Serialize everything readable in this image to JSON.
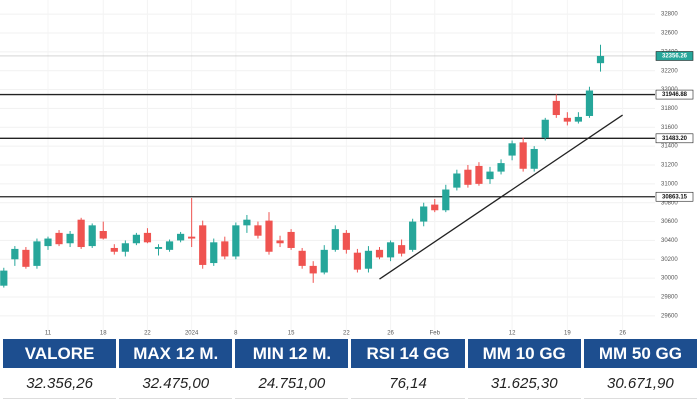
{
  "chart_data": {
    "type": "candlestick",
    "categories": [
      null,
      null,
      null,
      null,
      "11",
      null,
      null,
      null,
      null,
      "18",
      null,
      null,
      null,
      "22",
      null,
      null,
      null,
      "2024",
      null,
      null,
      null,
      "8",
      null,
      null,
      null,
      null,
      "15",
      null,
      null,
      null,
      null,
      "22",
      null,
      null,
      null,
      "26",
      null,
      null,
      null,
      "Feb",
      null,
      null,
      null,
      null,
      null,
      null,
      "12",
      null,
      null,
      null,
      null,
      "19",
      null,
      null,
      null,
      null,
      "26"
    ],
    "open": [
      29920,
      30200,
      30300,
      30130,
      30340,
      30480,
      30370,
      30620,
      30340,
      30500,
      30320,
      30280,
      30370,
      30480,
      30310,
      30300,
      30400,
      30440,
      30560,
      30160,
      30390,
      30230,
      30560,
      30560,
      30610,
      30400,
      30490,
      30290,
      30130,
      30060,
      30300,
      30480,
      30270,
      30100,
      30300,
      30220,
      30350,
      30300,
      30600,
      30780,
      30720,
      30960,
      31150,
      31190,
      31050,
      31130,
      31300,
      31440,
      31160,
      31490,
      31880,
      31700,
      31660,
      31720,
      32280,
      null,
      null
    ],
    "high": [
      30110,
      30340,
      30330,
      30420,
      30440,
      30510,
      30500,
      30640,
      30580,
      30600,
      30360,
      30400,
      30480,
      30530,
      30360,
      30410,
      30490,
      30850,
      30610,
      30420,
      30440,
      30590,
      30670,
      30600,
      30700,
      30450,
      30520,
      30320,
      30180,
      30350,
      30560,
      30510,
      30310,
      30340,
      30330,
      30400,
      30410,
      30630,
      30800,
      30840,
      30990,
      31150,
      31200,
      31230,
      31180,
      31260,
      31460,
      31490,
      31400,
      31700,
      31950,
      31760,
      31760,
      32030,
      32475,
      null,
      null
    ],
    "low": [
      29900,
      30130,
      30100,
      30100,
      30300,
      30340,
      30330,
      30310,
      30320,
      30410,
      30250,
      30230,
      30350,
      30370,
      30240,
      30280,
      30380,
      30330,
      30100,
      30130,
      30200,
      30200,
      30480,
      30420,
      30250,
      30330,
      30300,
      30100,
      29950,
      30040,
      30280,
      30260,
      30060,
      30060,
      30200,
      30180,
      30230,
      30280,
      30550,
      30700,
      30700,
      30930,
      30960,
      30980,
      31000,
      31100,
      31250,
      31130,
      31130,
      31460,
      31700,
      31620,
      31640,
      31700,
      32190,
      null,
      null
    ],
    "close": [
      30080,
      30310,
      30120,
      30390,
      30420,
      30360,
      30470,
      30330,
      30560,
      30420,
      30280,
      30370,
      30460,
      30380,
      30330,
      30390,
      30470,
      30420,
      30140,
      30380,
      30230,
      30560,
      30620,
      30450,
      30280,
      30370,
      30320,
      30130,
      30050,
      30300,
      30520,
      30300,
      30090,
      30290,
      30220,
      30380,
      30260,
      30600,
      30760,
      30720,
      30940,
      31110,
      30990,
      31000,
      31130,
      31220,
      31430,
      31160,
      31370,
      31680,
      31730,
      31660,
      31710,
      31990,
      32356.26,
      null,
      null
    ],
    "up_color": "#26a69a",
    "down_color": "#ef5350",
    "ylim": [
      29450,
      32950
    ],
    "yticks": [
      29600,
      29800,
      30000,
      30200,
      30400,
      30600,
      30800,
      31000,
      31200,
      31400,
      31600,
      31800,
      32000,
      32200,
      32400,
      32600,
      32800
    ],
    "levels": [
      {
        "value": 31946.88,
        "label": "31946.88"
      },
      {
        "value": 31483.2,
        "label": "31483.20"
      },
      {
        "value": 30863.15,
        "label": "30863.15"
      }
    ],
    "last": {
      "value": 32356.26,
      "label": "32356.26",
      "color": "#26a69a"
    },
    "trendline": {
      "x": [
        34,
        56
      ],
      "values": [
        29990,
        31730
      ],
      "color": "#222222"
    }
  },
  "table": {
    "headers": [
      "VALORE",
      "MAX 12 M.",
      "MIN 12 M.",
      "RSI 14 GG",
      "MM 10 GG",
      "MM 50 GG"
    ],
    "rows": [
      [
        "32.356,26",
        "32.475,00",
        "24.751,00",
        "76,14",
        "31.625,30",
        "30.671,90"
      ]
    ]
  }
}
